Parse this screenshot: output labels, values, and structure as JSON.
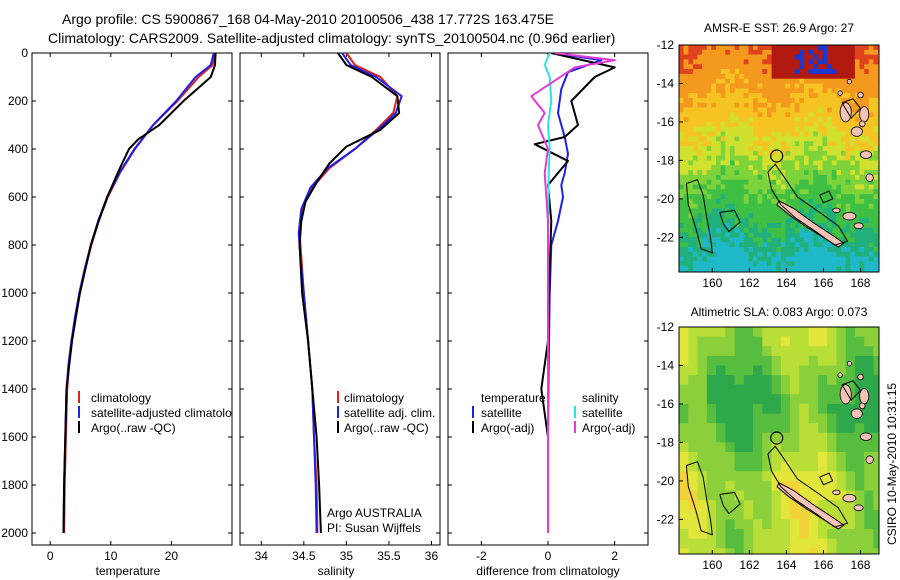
{
  "header": {
    "line1": "Argo profile: CS 5900867_168 04-May-2010 20100506_438 17.772S 163.475E",
    "line2": "Climatology: CARS2009. Satellite-adjusted climatology: synTS_20100504.nc (0.96d earlier)"
  },
  "credit": {
    "line1": "Argo AUSTRALIA",
    "line2": "PI: Susan Wijffels"
  },
  "stamp": "CSIRO 10-May-2010 10:31:15",
  "colors": {
    "climatology": "#e0201b",
    "satellite": "#1f1fe6",
    "argo": "#000000",
    "salinity_satellite": "#2fe2e2",
    "salinity_argo": "#e53ad8"
  },
  "chart_data": [
    {
      "type": "line",
      "xlabel": "temperature",
      "ylim": [
        2050,
        0
      ],
      "xlim": [
        -3,
        30
      ],
      "xticks": [
        0,
        10,
        20
      ],
      "yticks": [
        0,
        200,
        400,
        600,
        800,
        1000,
        1200,
        1400,
        1600,
        1800,
        2000
      ],
      "legend": [
        "climatology",
        "satellite-adjusted climatology",
        "Argo(..raw -QC)"
      ],
      "series": [
        {
          "name": "climatology",
          "color": "#e0201b",
          "x": [
            27.2,
            26.8,
            24.5,
            21.0,
            17.0,
            14.0,
            11.5,
            9.5,
            8.0,
            6.8,
            5.8,
            4.9,
            4.2,
            3.6,
            3.1,
            2.8,
            2.6,
            2.4,
            2.3
          ],
          "y": [
            0,
            50,
            100,
            200,
            300,
            400,
            500,
            600,
            700,
            800,
            900,
            1000,
            1100,
            1200,
            1300,
            1400,
            1600,
            1800,
            2000
          ]
        },
        {
          "name": "satellite-adjusted climatology",
          "color": "#1f1fe6",
          "x": [
            27.0,
            26.5,
            24.0,
            20.8,
            17.0,
            13.9,
            11.4,
            9.4,
            7.9,
            6.7,
            5.7,
            4.8,
            4.1,
            3.5,
            3.0,
            2.7,
            2.5,
            2.3,
            2.2
          ],
          "y": [
            0,
            50,
            100,
            200,
            300,
            400,
            500,
            600,
            700,
            800,
            900,
            1000,
            1100,
            1200,
            1300,
            1400,
            1600,
            1800,
            2000
          ]
        },
        {
          "name": "Argo(..raw -QC)",
          "color": "#000000",
          "x": [
            27.3,
            27.2,
            26.5,
            22.0,
            18.0,
            14.5,
            13.0,
            11.5,
            9.4,
            8.0,
            6.7,
            4.9,
            3.6,
            2.7,
            2.3,
            2.2
          ],
          "y": [
            0,
            50,
            100,
            200,
            300,
            360,
            400,
            480,
            600,
            700,
            800,
            1000,
            1200,
            1400,
            1800,
            2000
          ]
        }
      ]
    },
    {
      "type": "line",
      "xlabel": "salinity",
      "ylim": [
        2050,
        0
      ],
      "xlim": [
        33.75,
        36.1
      ],
      "xticks": [
        34,
        34.5,
        35,
        35.5,
        36
      ],
      "xticklabels": [
        "34",
        "34.5",
        "35",
        "35.5",
        "36"
      ],
      "legend": [
        "climatology",
        "satellite adj. clim.",
        "Argo(..raw -QC)"
      ],
      "series": [
        {
          "name": "climatology",
          "color": "#e0201b",
          "x": [
            35.0,
            35.1,
            35.4,
            35.6,
            35.55,
            35.35,
            35.1,
            34.8,
            34.6,
            34.48,
            34.45,
            34.47,
            34.5,
            34.55,
            34.6,
            34.62,
            34.65,
            34.66
          ],
          "y": [
            0,
            50,
            100,
            180,
            250,
            320,
            400,
            480,
            560,
            650,
            750,
            850,
            1000,
            1200,
            1400,
            1600,
            1800,
            2000
          ]
        },
        {
          "name": "satellite adj. clim.",
          "color": "#1f1fe6",
          "x": [
            34.95,
            35.05,
            35.35,
            35.65,
            35.58,
            35.37,
            35.1,
            34.78,
            34.58,
            34.47,
            34.44,
            34.46,
            34.5,
            34.55,
            34.6,
            34.62,
            34.64,
            34.65
          ],
          "y": [
            0,
            50,
            100,
            180,
            250,
            320,
            400,
            480,
            560,
            650,
            750,
            850,
            1000,
            1200,
            1400,
            1600,
            1800,
            2000
          ]
        },
        {
          "name": "Argo(..raw -QC)",
          "color": "#000000",
          "x": [
            34.9,
            35.0,
            35.3,
            35.6,
            35.62,
            35.4,
            35.0,
            34.8,
            34.65,
            34.52,
            34.47,
            34.45,
            34.48,
            34.55,
            34.6,
            34.65,
            34.68,
            34.7
          ],
          "y": [
            0,
            50,
            100,
            180,
            250,
            320,
            390,
            460,
            540,
            620,
            700,
            800,
            1000,
            1200,
            1400,
            1600,
            1800,
            2000
          ]
        }
      ]
    },
    {
      "type": "line",
      "xlabel": "difference from climatology",
      "ylim": [
        2050,
        0
      ],
      "xlim": [
        -3,
        3
      ],
      "xticks": [
        -2,
        0,
        2
      ],
      "legend_temperature_title": "temperature",
      "legend_temperature": [
        "satellite",
        "Argo(-adj)"
      ],
      "legend_salinity_title": "salinity",
      "legend_salinity": [
        "satellite",
        "Argo(-adj)"
      ],
      "series": [
        {
          "name": "temperature satellite",
          "color": "#1f1fe6",
          "x": [
            0.2,
            1.6,
            0.6,
            0.4,
            0.3,
            0.5,
            0.6,
            0.5,
            0.4,
            0.45,
            0.3,
            0.1,
            0.05,
            0.02,
            0.0,
            0.0
          ],
          "y": [
            0,
            30,
            80,
            150,
            250,
            350,
            420,
            500,
            550,
            600,
            700,
            800,
            1000,
            1300,
            1600,
            2000
          ]
        },
        {
          "name": "temperature Argo(-adj)",
          "color": "#000000",
          "x": [
            0.1,
            2.0,
            1.4,
            0.7,
            0.9,
            0.5,
            -0.4,
            0.6,
            0.0,
            0.1,
            0.05,
            0.0,
            -0.2,
            0.0,
            0.0
          ],
          "y": [
            0,
            60,
            100,
            200,
            300,
            350,
            380,
            450,
            550,
            700,
            900,
            1200,
            1400,
            1600,
            2000
          ]
        },
        {
          "name": "salinity satellite",
          "color": "#2fe2e2",
          "x": [
            0.05,
            -0.1,
            0.05,
            0.1,
            0.0,
            0.05,
            0.02,
            0.0,
            0.0,
            0.0
          ],
          "y": [
            0,
            50,
            100,
            200,
            300,
            400,
            500,
            700,
            1000,
            2000
          ]
        },
        {
          "name": "salinity Argo(-adj)",
          "color": "#e53ad8",
          "x": [
            0.2,
            2.0,
            0.8,
            -0.5,
            -0.1,
            -0.3,
            0.0,
            -0.1,
            0.0,
            0.0,
            0.0
          ],
          "y": [
            0,
            30,
            60,
            180,
            250,
            300,
            400,
            500,
            700,
            1000,
            2000
          ]
        }
      ]
    },
    {
      "type": "heatmap",
      "title": "AMSR-E SST: 26.9 Argo: 27",
      "xlim": [
        158.2,
        169.0
      ],
      "ylim": [
        -23.8,
        -12.0
      ],
      "xticks": [
        160,
        162,
        164,
        166,
        168
      ],
      "yticks": [
        -12,
        -14,
        -16,
        -18,
        -20,
        -22
      ],
      "marker": {
        "lon": 163.475,
        "lat": -17.772
      }
    },
    {
      "type": "heatmap",
      "title": "Altimetric SLA: 0.083 Argo: 0.073",
      "xlim": [
        158.2,
        169.0
      ],
      "ylim": [
        -23.8,
        -12.0
      ],
      "xticks": [
        160,
        162,
        164,
        166,
        168
      ],
      "yticks": [
        -12,
        -14,
        -16,
        -18,
        -20,
        -22
      ],
      "marker": {
        "lon": 163.475,
        "lat": -17.772
      }
    }
  ]
}
